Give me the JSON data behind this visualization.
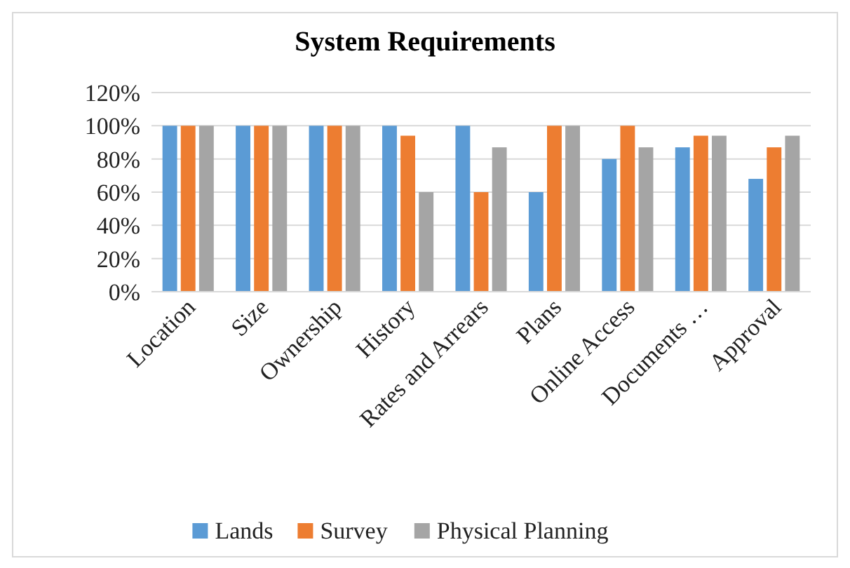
{
  "chart_data": {
    "type": "bar",
    "title": "System Requirements",
    "categories": [
      "Location",
      "Size",
      "Ownership",
      "History",
      "Rates and Arrears",
      "Plans",
      "Online Access",
      "Documents …",
      "Approval"
    ],
    "series": [
      {
        "name": "Lands",
        "color": "#5b9bd5",
        "values": [
          100,
          100,
          100,
          100,
          100,
          60,
          80,
          87,
          68
        ]
      },
      {
        "name": "Survey",
        "color": "#ed7d31",
        "values": [
          100,
          100,
          100,
          94,
          60,
          100,
          100,
          94,
          87
        ]
      },
      {
        "name": "Physical Planning",
        "color": "#a5a5a5",
        "values": [
          100,
          100,
          100,
          60,
          87,
          100,
          87,
          94,
          94
        ]
      }
    ],
    "ylim": [
      0,
      120
    ],
    "yticks": [
      {
        "value": 0,
        "label": "0%"
      },
      {
        "value": 20,
        "label": "20%"
      },
      {
        "value": 40,
        "label": "40%"
      },
      {
        "value": 60,
        "label": "60%"
      },
      {
        "value": 80,
        "label": "80%"
      },
      {
        "value": 100,
        "label": "100%"
      },
      {
        "value": 120,
        "label": "120%"
      }
    ],
    "grid": "y",
    "legend": "bottom"
  }
}
